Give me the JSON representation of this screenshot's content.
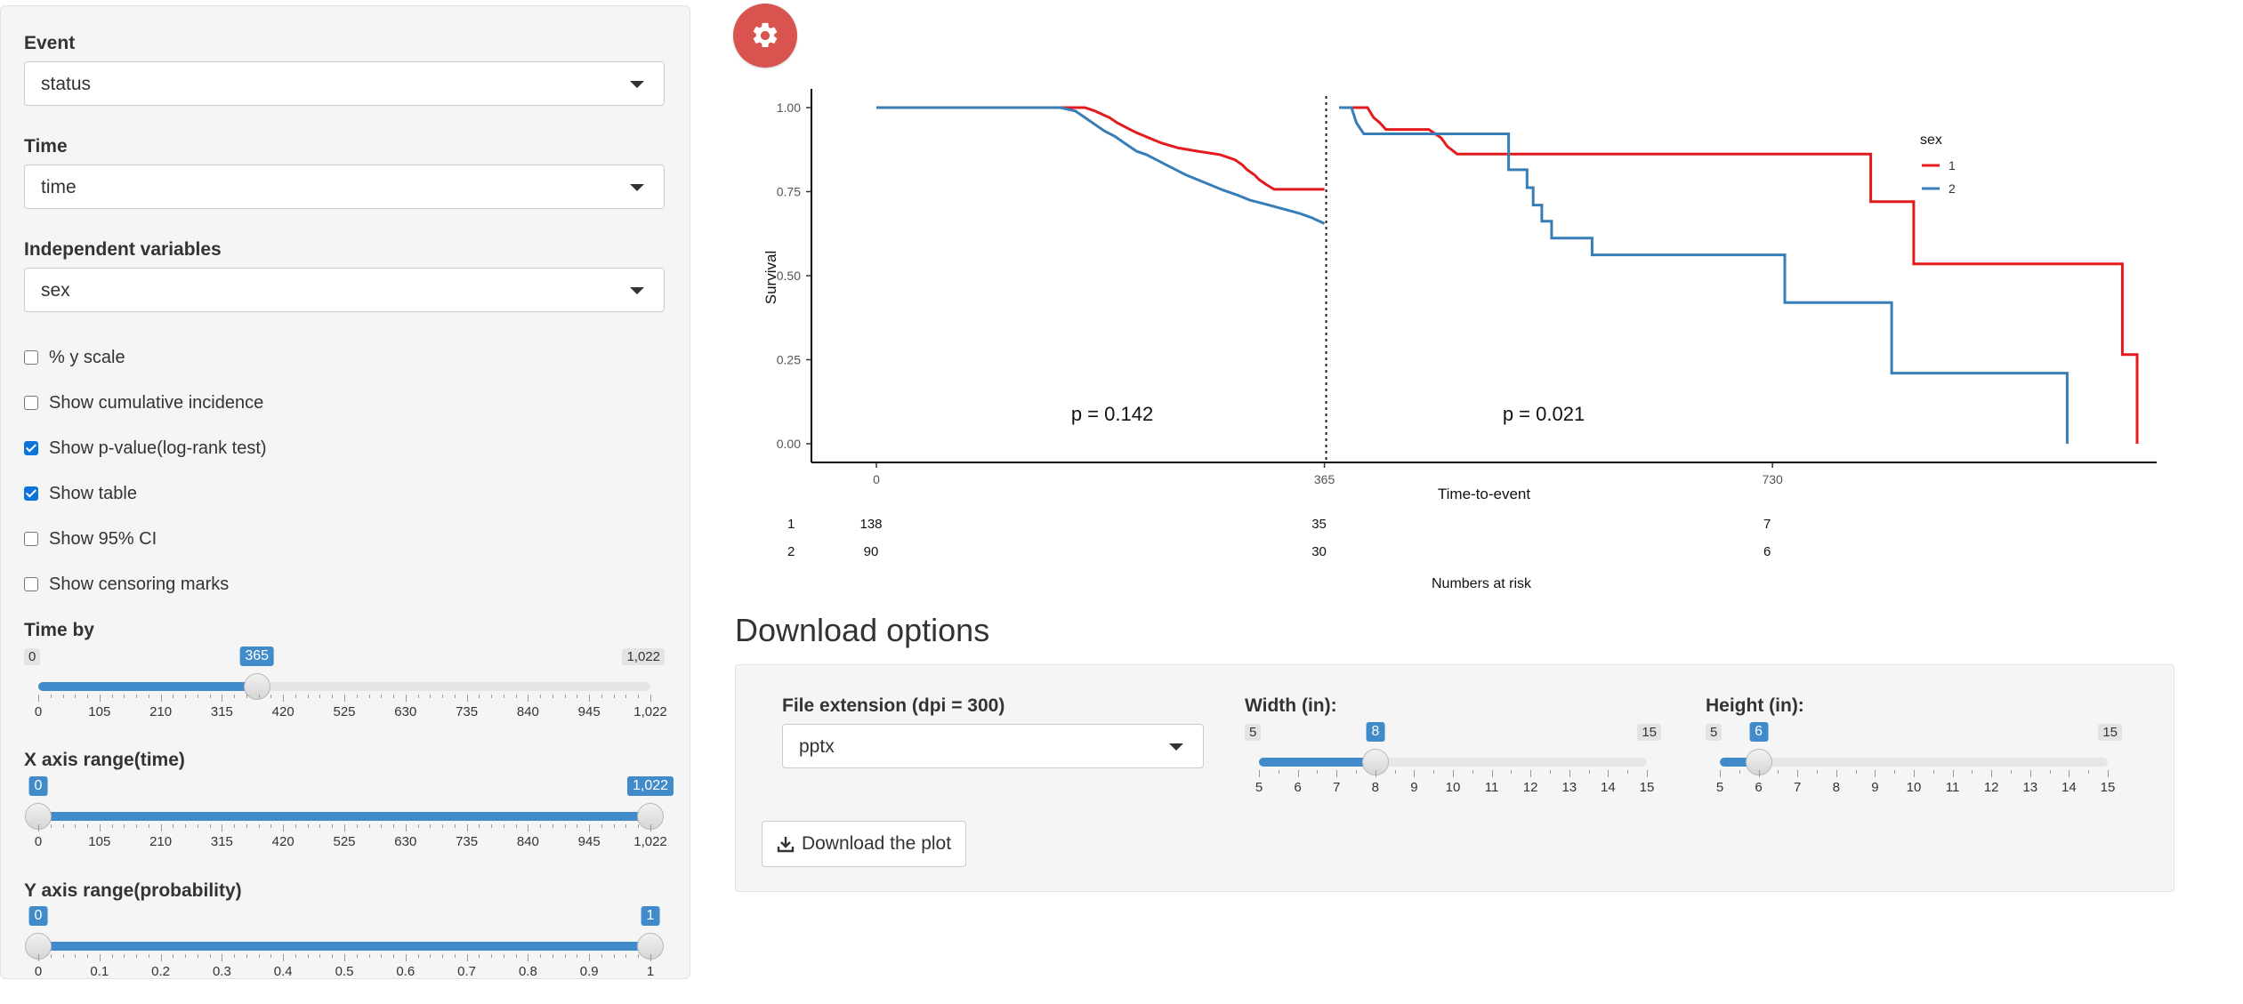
{
  "sidebar": {
    "event": {
      "label": "Event",
      "value": "status"
    },
    "time": {
      "label": "Time",
      "value": "time"
    },
    "independent": {
      "label": "Independent variables",
      "value": "sex"
    },
    "checkboxes": [
      {
        "label": "% y scale",
        "checked": false
      },
      {
        "label": "Show cumulative incidence",
        "checked": false
      },
      {
        "label": "Show p-value(log-rank test)",
        "checked": true
      },
      {
        "label": "Show table",
        "checked": true
      },
      {
        "label": "Show 95% CI",
        "checked": false
      },
      {
        "label": "Show censoring marks",
        "checked": false
      }
    ],
    "time_by": {
      "label": "Time by",
      "min_label": "0",
      "max_label": "1,022",
      "value_label": "365",
      "min": 0,
      "max": 1022,
      "value": 365,
      "ticks": [
        "0",
        "105",
        "210",
        "315",
        "420",
        "525",
        "630",
        "735",
        "840",
        "945",
        "1,022"
      ]
    },
    "x_range": {
      "label": "X axis range(time)",
      "from_label": "0",
      "to_label": "1,022",
      "min": 0,
      "max": 1022,
      "from": 0,
      "to": 1022,
      "ticks": [
        "0",
        "105",
        "210",
        "315",
        "420",
        "525",
        "630",
        "735",
        "840",
        "945",
        "1,022"
      ]
    },
    "y_range": {
      "label": "Y axis range(probability)",
      "from_label": "0",
      "to_label": "1",
      "min": 0,
      "max": 1,
      "from": 0,
      "to": 1,
      "ticks": [
        "0",
        "0.1",
        "0.2",
        "0.3",
        "0.4",
        "0.5",
        "0.6",
        "0.7",
        "0.8",
        "0.9",
        "1"
      ]
    }
  },
  "icons": {
    "settings": "gear-icon",
    "download": "download-icon",
    "dropdown": "chevron-down-icon"
  },
  "colors": {
    "accent": "#428bca",
    "gear_button": "#d9534f",
    "series_1": "#e41a1c",
    "series_2": "#377eb8"
  },
  "chart_data": {
    "type": "line",
    "xlabel": "Time-to-event",
    "ylabel": "Survival",
    "xlim": [
      0,
      1022
    ],
    "ylim": [
      0,
      1
    ],
    "x_ticks": [
      "0",
      "365",
      "730"
    ],
    "y_ticks": [
      "0.00",
      "0.25",
      "0.50",
      "0.75",
      "1.00"
    ],
    "landmark": 365,
    "legend_title": "sex",
    "legend_position": "top-right",
    "p_values": [
      "p = 0.142",
      "p = 0.021"
    ],
    "series": [
      {
        "name": "1",
        "color": "#e41a1c",
        "segments": [
          [
            [
              0,
              1.0
            ],
            [
              170,
              1.0
            ],
            [
              178,
              0.99
            ],
            [
              184,
              0.98
            ],
            [
              190,
              0.97
            ],
            [
              196,
              0.955
            ],
            [
              204,
              0.94
            ],
            [
              212,
              0.925
            ],
            [
              222,
              0.91
            ],
            [
              232,
              0.895
            ],
            [
              246,
              0.88
            ],
            [
              262,
              0.87
            ],
            [
              280,
              0.86
            ],
            [
              292,
              0.845
            ],
            [
              298,
              0.83
            ],
            [
              302,
              0.815
            ],
            [
              308,
              0.8
            ],
            [
              312,
              0.785
            ],
            [
              318,
              0.77
            ],
            [
              324,
              0.757
            ],
            [
              365,
              0.757
            ]
          ],
          [
            [
              372,
              1.0
            ],
            [
              395,
              1.0
            ],
            [
              400,
              0.97
            ],
            [
              405,
              0.955
            ],
            [
              410,
              0.935
            ],
            [
              445,
              0.935
            ],
            [
              455,
              0.91
            ],
            [
              460,
              0.885
            ],
            [
              468,
              0.862
            ],
            [
              805,
              0.862
            ],
            [
              805,
              0.72
            ],
            [
              840,
              0.72
            ],
            [
              840,
              0.535
            ],
            [
              1010,
              0.535
            ],
            [
              1010,
              0.265
            ],
            [
              1022,
              0.265
            ],
            [
              1022,
              0.0
            ]
          ]
        ]
      },
      {
        "name": "2",
        "color": "#377eb8",
        "segments": [
          [
            [
              0,
              1.0
            ],
            [
              150,
              1.0
            ],
            [
              162,
              0.99
            ],
            [
              168,
              0.975
            ],
            [
              174,
              0.96
            ],
            [
              180,
              0.945
            ],
            [
              186,
              0.93
            ],
            [
              194,
              0.915
            ],
            [
              200,
              0.9
            ],
            [
              206,
              0.885
            ],
            [
              212,
              0.87
            ],
            [
              220,
              0.86
            ],
            [
              228,
              0.845
            ],
            [
              236,
              0.83
            ],
            [
              244,
              0.815
            ],
            [
              252,
              0.8
            ],
            [
              262,
              0.785
            ],
            [
              272,
              0.77
            ],
            [
              282,
              0.755
            ],
            [
              294,
              0.74
            ],
            [
              304,
              0.725
            ],
            [
              318,
              0.712
            ],
            [
              330,
              0.7
            ],
            [
              345,
              0.685
            ],
            [
              355,
              0.672
            ],
            [
              362,
              0.66
            ],
            [
              365,
              0.655
            ]
          ],
          [
            [
              372,
              1.0
            ],
            [
              382,
              1.0
            ],
            [
              386,
              0.955
            ],
            [
              392,
              0.922
            ],
            [
              460,
              0.922
            ],
            [
              510,
              0.922
            ],
            [
              510,
              0.815
            ],
            [
              525,
              0.815
            ],
            [
              525,
              0.762
            ],
            [
              530,
              0.762
            ],
            [
              530,
              0.71
            ],
            [
              537,
              0.71
            ],
            [
              537,
              0.662
            ],
            [
              545,
              0.662
            ],
            [
              545,
              0.612
            ],
            [
              578,
              0.612
            ],
            [
              578,
              0.562
            ],
            [
              735,
              0.562
            ],
            [
              735,
              0.42
            ],
            [
              822,
              0.42
            ],
            [
              822,
              0.21
            ],
            [
              965,
              0.21
            ],
            [
              965,
              0.0
            ]
          ]
        ]
      }
    ],
    "risk_table": {
      "title": "Numbers at risk",
      "rows": [
        {
          "group": "1",
          "counts": [
            "138",
            "35",
            "7"
          ]
        },
        {
          "group": "2",
          "counts": [
            "90",
            "30",
            "6"
          ]
        }
      ],
      "times": [
        0,
        365,
        730
      ]
    }
  },
  "download": {
    "title": "Download options",
    "file_ext": {
      "label": "File extension (dpi = 300)",
      "value": "pptx"
    },
    "width": {
      "label": "Width (in):",
      "min_label": "5",
      "max_label": "15",
      "value_label": "8",
      "min": 5,
      "max": 15,
      "value": 8,
      "ticks": [
        "5",
        "6",
        "7",
        "8",
        "9",
        "10",
        "11",
        "12",
        "13",
        "14",
        "15"
      ]
    },
    "height": {
      "label": "Height (in):",
      "min_label": "5",
      "max_label": "15",
      "value_label": "6",
      "min": 5,
      "max": 15,
      "value": 6,
      "ticks": [
        "5",
        "6",
        "7",
        "8",
        "9",
        "10",
        "11",
        "12",
        "13",
        "14",
        "15"
      ]
    },
    "button_label": "Download the plot"
  }
}
